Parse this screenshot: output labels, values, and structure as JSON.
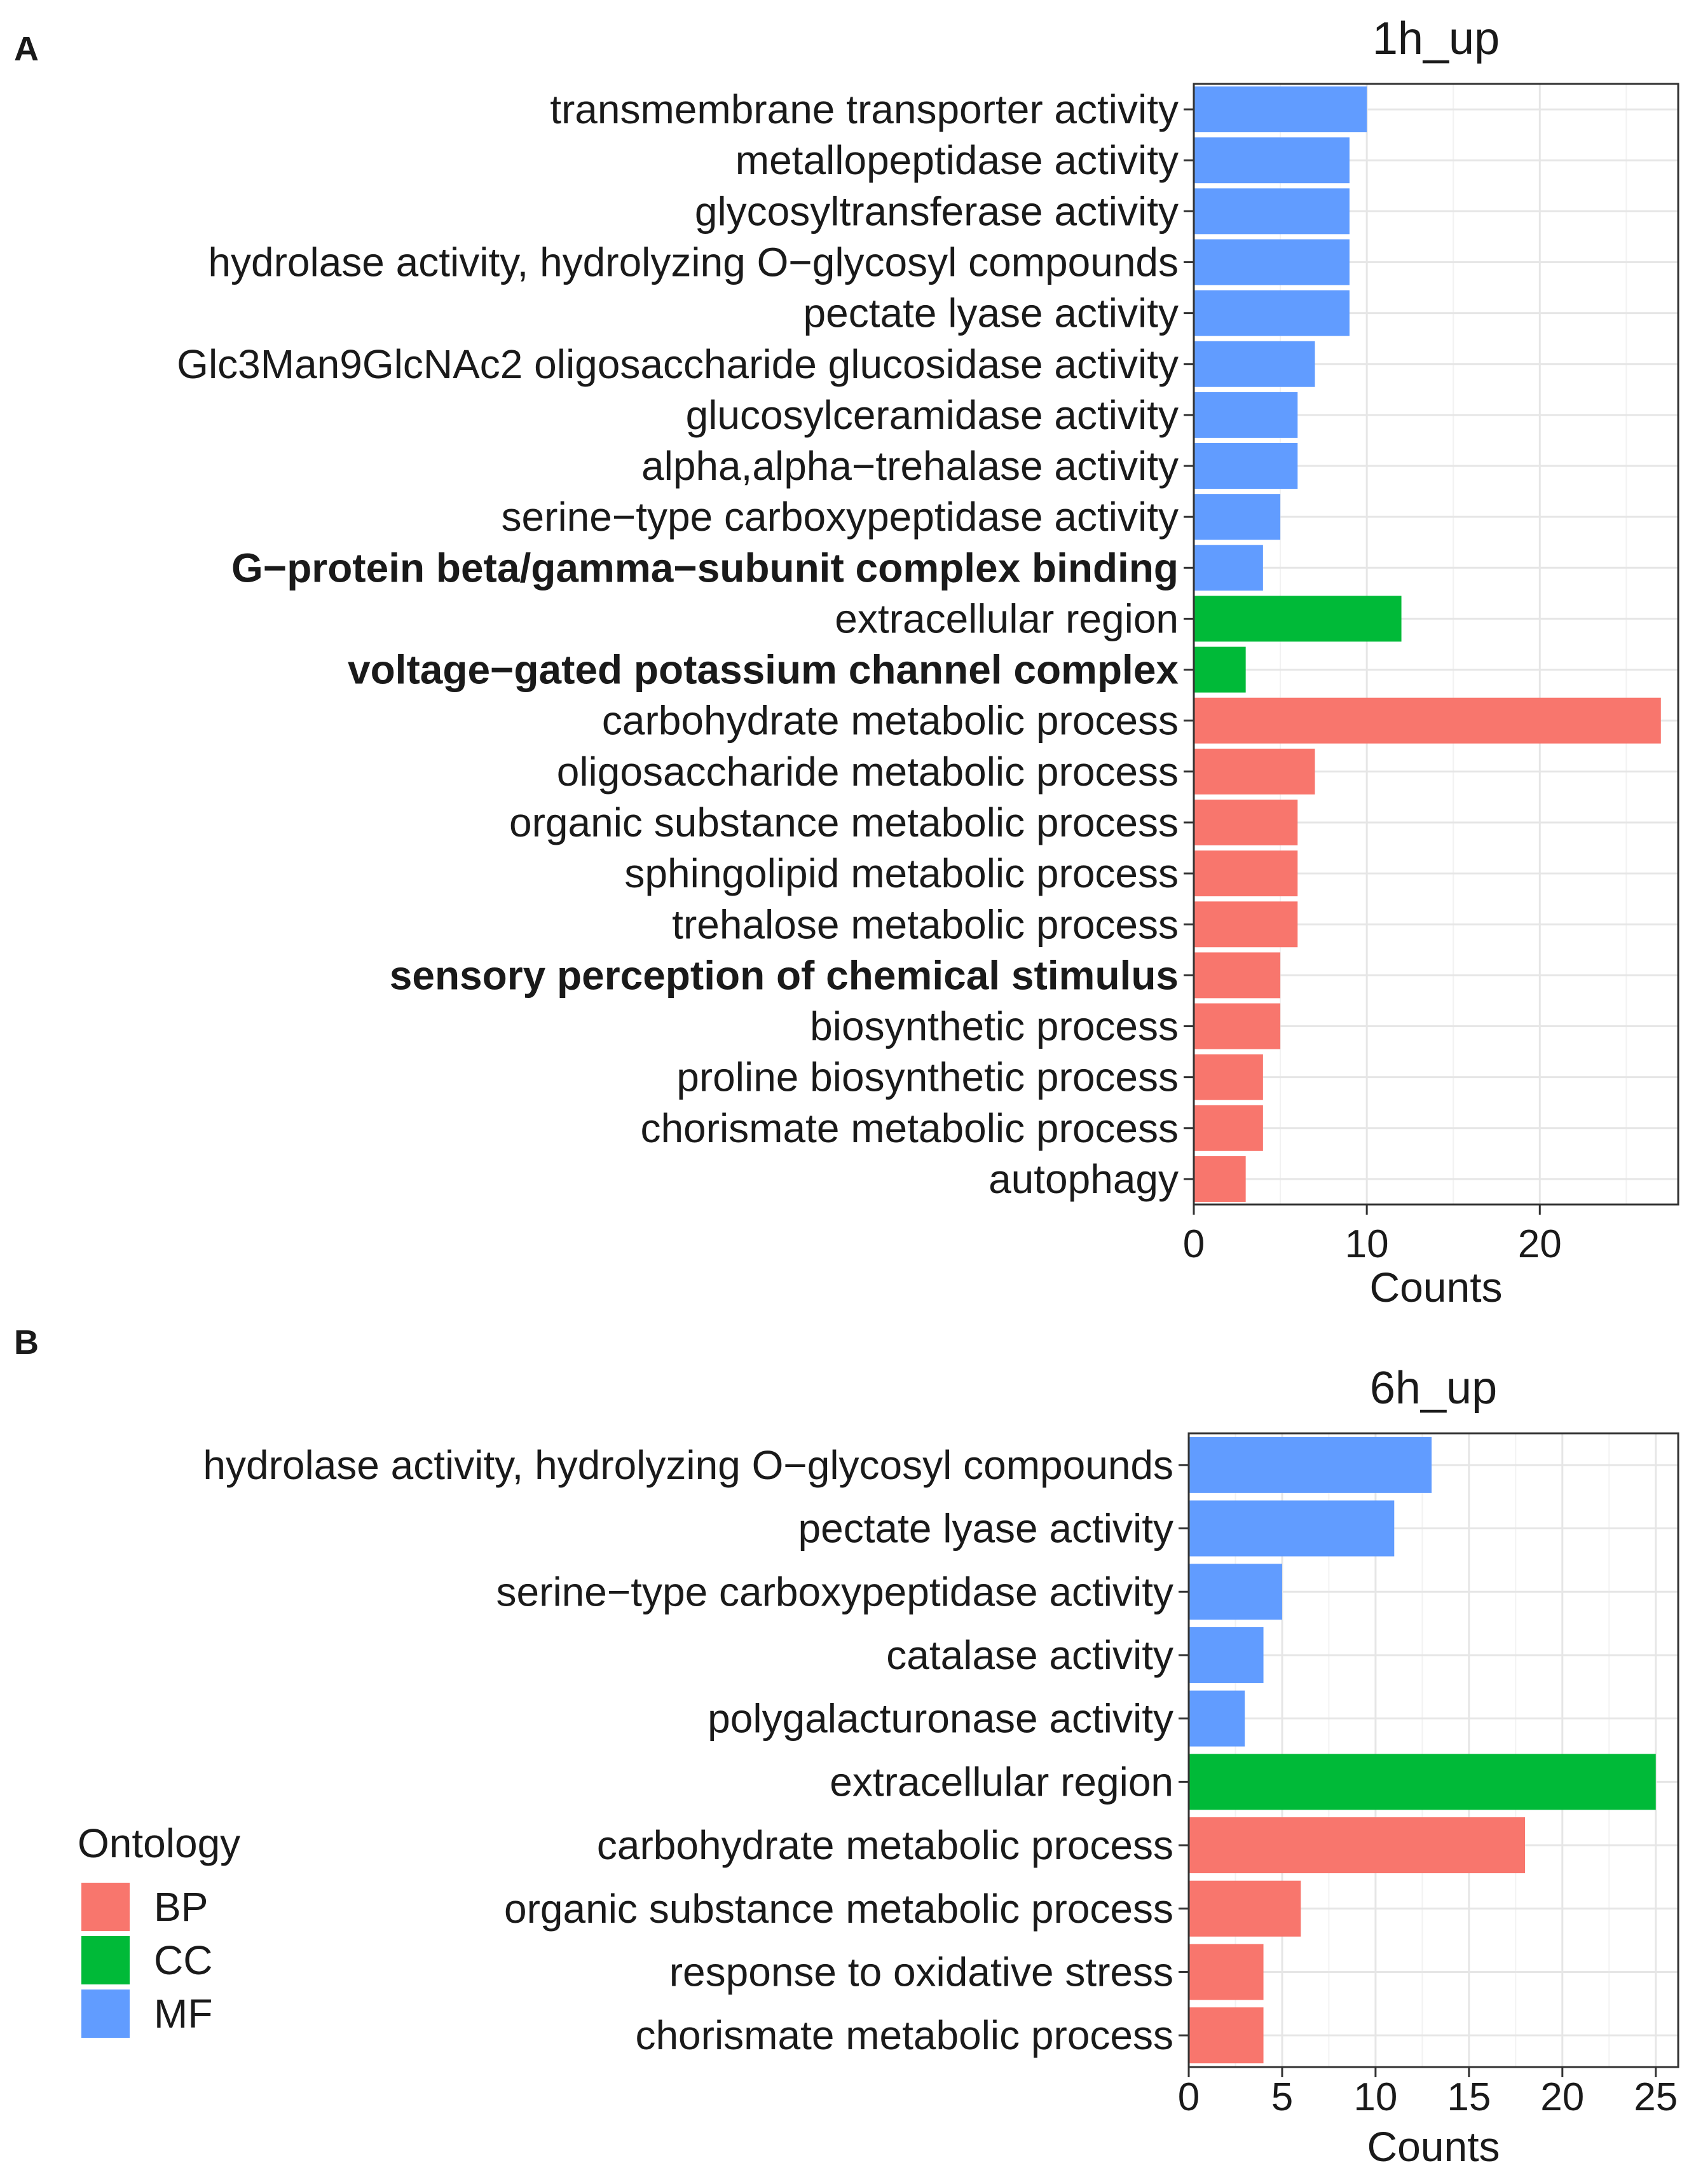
{
  "legend": {
    "title": "Ontology",
    "items": [
      {
        "key": "BP",
        "label": "BP",
        "color": "#F8766D"
      },
      {
        "key": "CC",
        "label": "CC",
        "color": "#00BA38"
      },
      {
        "key": "MF",
        "label": "MF",
        "color": "#619CFF"
      }
    ]
  },
  "chart_data": [
    {
      "panel": "A",
      "type": "bar",
      "orientation": "horizontal",
      "title": "1h_up",
      "xlabel": "Counts",
      "ylabel": "",
      "xlim": [
        0,
        28
      ],
      "xticks": [
        0,
        10,
        20
      ],
      "grid": true,
      "bars": [
        {
          "category": "transmembrane transporter activity",
          "value": 10,
          "ontology": "MF",
          "bold": false
        },
        {
          "category": "metallopeptidase activity",
          "value": 9,
          "ontology": "MF",
          "bold": false
        },
        {
          "category": "glycosyltransferase activity",
          "value": 9,
          "ontology": "MF",
          "bold": false
        },
        {
          "category": "hydrolase activity, hydrolyzing O−glycosyl compounds",
          "value": 9,
          "ontology": "MF",
          "bold": false
        },
        {
          "category": "pectate lyase activity",
          "value": 9,
          "ontology": "MF",
          "bold": false
        },
        {
          "category": "Glc3Man9GlcNAc2 oligosaccharide glucosidase activity",
          "value": 7,
          "ontology": "MF",
          "bold": false
        },
        {
          "category": "glucosylceramidase activity",
          "value": 6,
          "ontology": "MF",
          "bold": false
        },
        {
          "category": "alpha,alpha−trehalase activity",
          "value": 6,
          "ontology": "MF",
          "bold": false
        },
        {
          "category": "serine−type carboxypeptidase activity",
          "value": 5,
          "ontology": "MF",
          "bold": false
        },
        {
          "category": "G−protein beta/gamma−subunit complex binding",
          "value": 4,
          "ontology": "MF",
          "bold": true
        },
        {
          "category": "extracellular region",
          "value": 12,
          "ontology": "CC",
          "bold": false
        },
        {
          "category": "voltage−gated potassium channel complex",
          "value": 3,
          "ontology": "CC",
          "bold": true
        },
        {
          "category": "carbohydrate metabolic process",
          "value": 27,
          "ontology": "BP",
          "bold": false
        },
        {
          "category": "oligosaccharide metabolic process",
          "value": 7,
          "ontology": "BP",
          "bold": false
        },
        {
          "category": "organic substance metabolic process",
          "value": 6,
          "ontology": "BP",
          "bold": false
        },
        {
          "category": "sphingolipid metabolic process",
          "value": 6,
          "ontology": "BP",
          "bold": false
        },
        {
          "category": "trehalose metabolic process",
          "value": 6,
          "ontology": "BP",
          "bold": false
        },
        {
          "category": "sensory perception of chemical stimulus",
          "value": 5,
          "ontology": "BP",
          "bold": true
        },
        {
          "category": "biosynthetic process",
          "value": 5,
          "ontology": "BP",
          "bold": false
        },
        {
          "category": "proline biosynthetic process",
          "value": 4,
          "ontology": "BP",
          "bold": false
        },
        {
          "category": "chorismate metabolic process",
          "value": 4,
          "ontology": "BP",
          "bold": false
        },
        {
          "category": "autophagy",
          "value": 3,
          "ontology": "BP",
          "bold": false
        }
      ]
    },
    {
      "panel": "B",
      "type": "bar",
      "orientation": "horizontal",
      "title": "6h_up",
      "xlabel": "Counts",
      "ylabel": "",
      "xlim": [
        0,
        26.2
      ],
      "xticks": [
        0,
        5,
        10,
        15,
        20,
        25
      ],
      "grid": true,
      "bars": [
        {
          "category": "hydrolase activity, hydrolyzing O−glycosyl compounds",
          "value": 13,
          "ontology": "MF",
          "bold": false
        },
        {
          "category": "pectate lyase activity",
          "value": 11,
          "ontology": "MF",
          "bold": false
        },
        {
          "category": "serine−type carboxypeptidase activity",
          "value": 5,
          "ontology": "MF",
          "bold": false
        },
        {
          "category": "catalase activity",
          "value": 4,
          "ontology": "MF",
          "bold": false
        },
        {
          "category": "polygalacturonase activity",
          "value": 3,
          "ontology": "MF",
          "bold": false
        },
        {
          "category": "extracellular region",
          "value": 25,
          "ontology": "CC",
          "bold": false
        },
        {
          "category": "carbohydrate metabolic process",
          "value": 18,
          "ontology": "BP",
          "bold": false
        },
        {
          "category": "organic substance metabolic process",
          "value": 6,
          "ontology": "BP",
          "bold": false
        },
        {
          "category": "response to oxidative stress",
          "value": 4,
          "ontology": "BP",
          "bold": false
        },
        {
          "category": "chorismate metabolic process",
          "value": 4,
          "ontology": "BP",
          "bold": false
        }
      ]
    }
  ]
}
